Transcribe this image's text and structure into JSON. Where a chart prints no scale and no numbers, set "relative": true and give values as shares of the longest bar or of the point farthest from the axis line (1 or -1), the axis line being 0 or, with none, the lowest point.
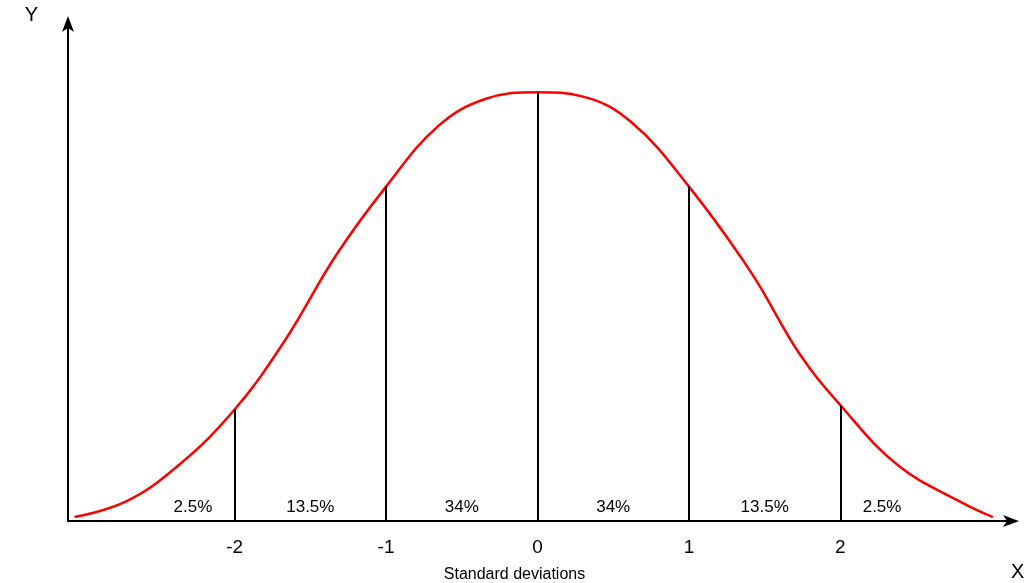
{
  "chart_data": {
    "type": "line",
    "relative": true,
    "xlabel": "X",
    "ylabel": "Y",
    "xlim": [
      -3.1,
      3.1
    ],
    "xticks": [
      -2,
      -1,
      0,
      1,
      2
    ],
    "x": [
      -3.05,
      -2.72,
      -2.37,
      -2,
      -1.67,
      -1.33,
      -1,
      -0.66,
      -0.34,
      0,
      0.3,
      0.62,
      1,
      1.41,
      1.73,
      2,
      2.38,
      2.79,
      3.0
    ],
    "series": [
      {
        "color": "#ff0000",
        "values": [
          0.01,
          0.045,
          0.13,
          0.26,
          0.42,
          0.62,
          0.78,
          0.92,
          0.985,
          1,
          0.99,
          0.93,
          0.78,
          0.58,
          0.39,
          0.27,
          0.13,
          0.045,
          0.01
        ]
      }
    ],
    "ref_lines": [
      {
        "axis": "x",
        "value": -2,
        "color": "#000000"
      },
      {
        "axis": "x",
        "value": -1,
        "color": "#000000"
      },
      {
        "axis": "x",
        "value": 0,
        "color": "#000000"
      },
      {
        "axis": "x",
        "value": 1,
        "color": "#000000"
      },
      {
        "axis": "x",
        "value": 2,
        "color": "#000000"
      }
    ],
    "annotations": [
      "2.5%",
      "13.5%",
      "34%",
      "34%",
      "13.5%",
      "2.5%",
      "Standard deviations"
    ],
    "grid": false,
    "marker": "none",
    "line_style": "solid"
  }
}
